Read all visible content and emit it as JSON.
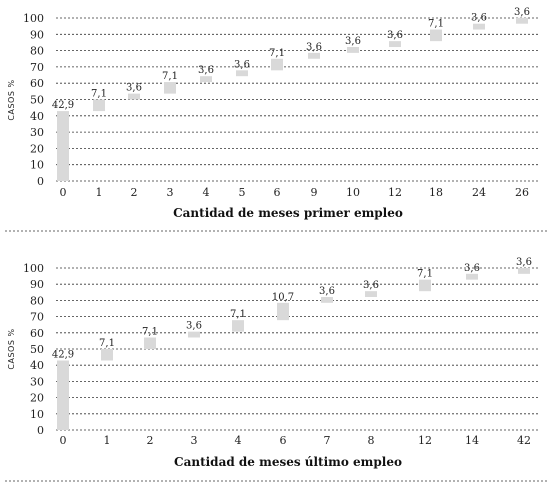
{
  "chart_data": [
    {
      "type": "bar",
      "subtype": "waterfall-cumulative",
      "ylabel": "CASOS %",
      "xlabel": "Cantidad de meses primer empleo",
      "ylim": [
        0,
        100
      ],
      "yticks": [
        0,
        10,
        20,
        30,
        40,
        50,
        60,
        70,
        80,
        90,
        100
      ],
      "grid": true,
      "categories": [
        "0",
        "1",
        "2",
        "3",
        "4",
        "5",
        "6",
        "9",
        "10",
        "12",
        "18",
        "24",
        "26"
      ],
      "values": [
        42.9,
        7.1,
        3.6,
        7.1,
        3.6,
        3.6,
        7.1,
        3.6,
        3.6,
        3.6,
        7.1,
        3.6,
        3.6
      ],
      "value_labels": [
        "42,9",
        "7,1",
        "3,6",
        "7,1",
        "3,6",
        "3,6",
        "7,1",
        "3,6",
        "3,6",
        "3,6",
        "7,1",
        "3,6",
        "3,6"
      ]
    },
    {
      "type": "bar",
      "subtype": "waterfall-cumulative",
      "ylabel": "CASOS %",
      "xlabel": "Cantidad de meses último empleo",
      "ylim": [
        0,
        100
      ],
      "yticks": [
        0,
        10,
        20,
        30,
        40,
        50,
        60,
        70,
        80,
        90,
        100
      ],
      "grid": true,
      "categories": [
        "0",
        "1",
        "2",
        "3",
        "4",
        "6",
        "7",
        "8",
        "12",
        "14",
        "42"
      ],
      "values": [
        42.9,
        7.1,
        7.1,
        3.6,
        7.1,
        10.7,
        3.6,
        3.6,
        7.1,
        3.6,
        3.6
      ],
      "value_labels": [
        "42,9",
        "7,1",
        "7,1",
        "3,6",
        "7,1",
        "10,7",
        "3,6",
        "3,6",
        "7,1",
        "3,6",
        "3,6"
      ]
    }
  ]
}
